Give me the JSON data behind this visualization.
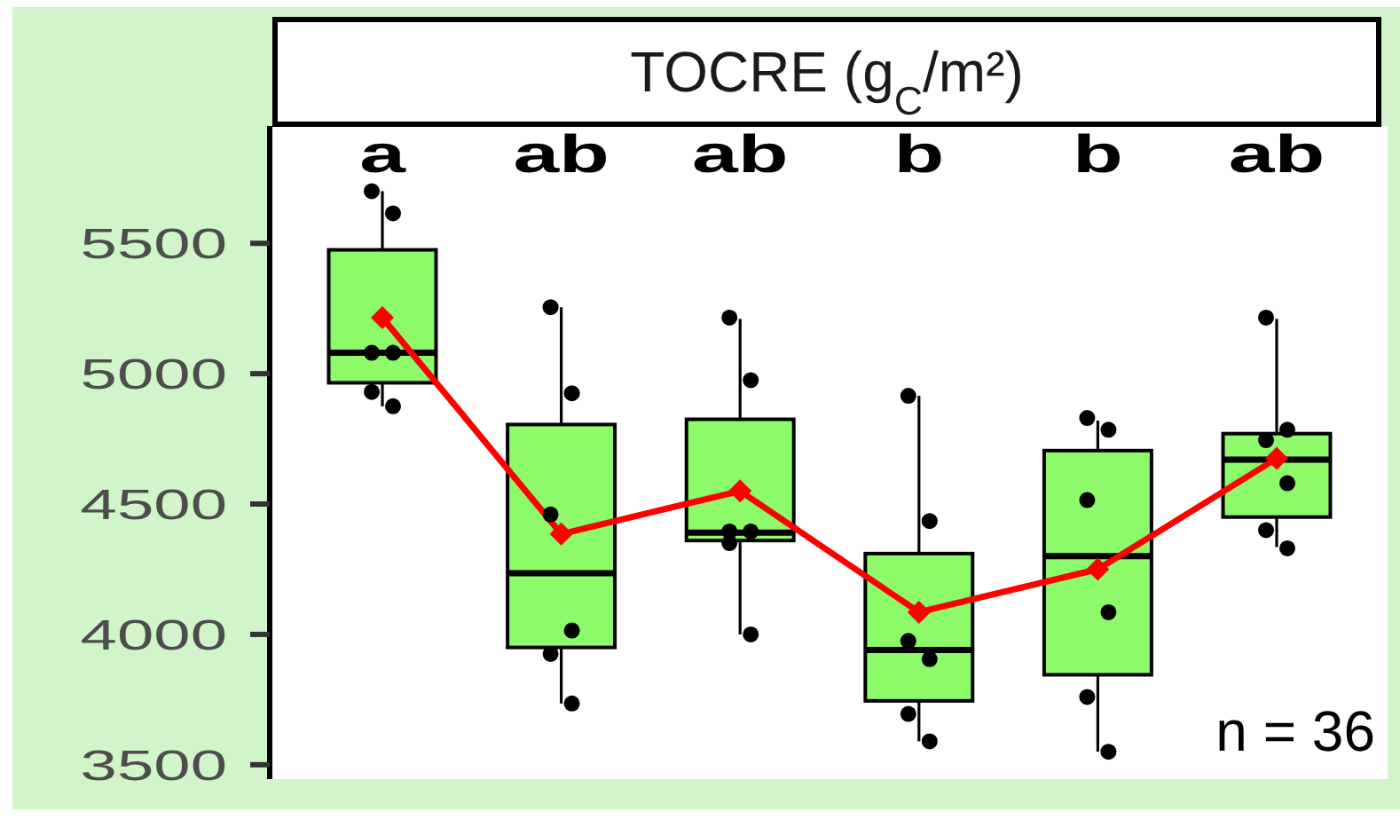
{
  "chart_data": {
    "type": "box",
    "title": "TOCRE (g$_{C}$/m²)",
    "categories": [
      null,
      null,
      null,
      null,
      null,
      null
    ],
    "series": [
      {
        "type": "box",
        "color": "#8dfa6a",
        "boxes": [
          {
            "low": 4875,
            "q1": 4965,
            "median": 5080,
            "q3": 5475,
            "high": 5700
          },
          {
            "low": 3735,
            "q1": 3950,
            "median": 4235,
            "q3": 4805,
            "high": 5255
          },
          {
            "low": 4000,
            "q1": 4360,
            "median": 4390,
            "q3": 4825,
            "high": 5210
          },
          {
            "low": 3590,
            "q1": 3745,
            "median": 3940,
            "q3": 4310,
            "high": 4915
          },
          {
            "low": 3550,
            "q1": 3845,
            "median": 4300,
            "q3": 4705,
            "high": 4820
          },
          {
            "low": 4335,
            "q1": 4450,
            "median": 4670,
            "q3": 4770,
            "high": 5210
          }
        ]
      },
      {
        "type": "line",
        "color": "#ff0000",
        "marker": "diamond",
        "values": [
          5215,
          4385,
          4550,
          4085,
          4250,
          4675
        ]
      },
      {
        "type": "scatter",
        "color": "#000000",
        "values": [
          5700,
          5255,
          5215,
          4915,
          4830,
          5215
        ]
      },
      {
        "type": "scatter",
        "color": "#000000",
        "values": [
          5615,
          4925,
          4975,
          4435,
          4785,
          4785
        ]
      },
      {
        "type": "scatter",
        "color": "#000000",
        "values": [
          5080,
          4460,
          4395,
          3975,
          4515,
          4745
        ]
      },
      {
        "type": "scatter",
        "color": "#000000",
        "values": [
          5080,
          4015,
          4395,
          3905,
          4085,
          4580
        ]
      },
      {
        "type": "scatter",
        "color": "#000000",
        "values": [
          4930,
          3925,
          4350,
          3695,
          3760,
          4400
        ]
      },
      {
        "type": "scatter",
        "color": "#000000",
        "values": [
          4875,
          3735,
          4000,
          3590,
          3550,
          4330
        ]
      }
    ],
    "ylim": [
      3445,
      5950
    ],
    "yticks": [
      3500,
      4000,
      4500,
      5000,
      5500
    ],
    "tick_labels": "y",
    "annotations": [
      "a",
      "ab",
      "ab",
      "b",
      "b",
      "ab",
      "n = 36"
    ]
  }
}
